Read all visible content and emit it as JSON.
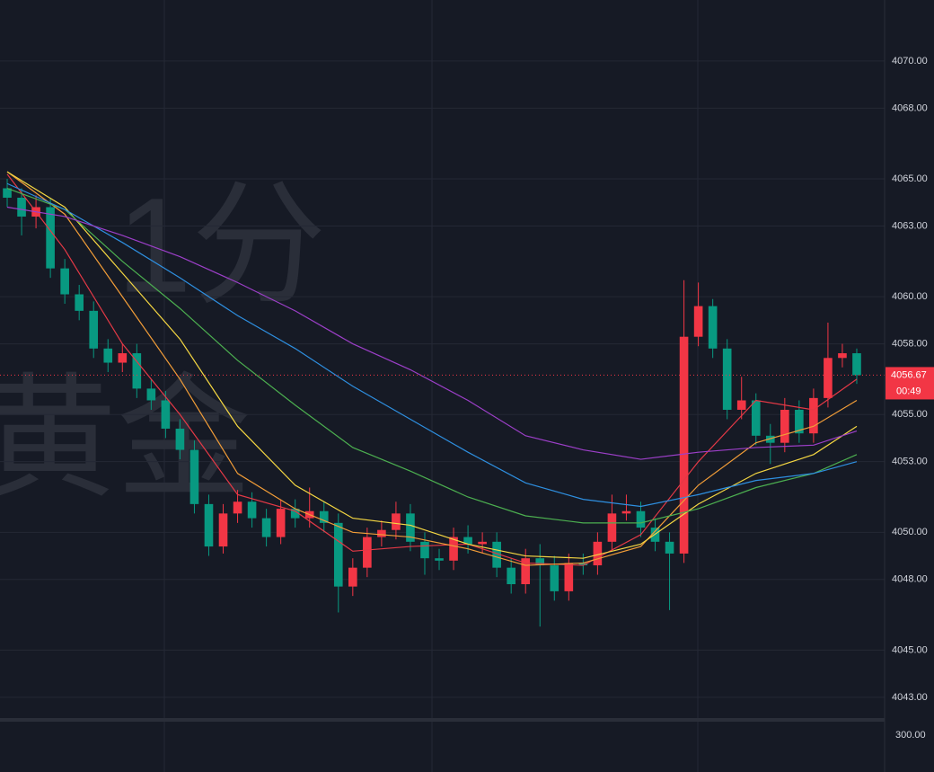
{
  "chart_data": {
    "type": "candlestick",
    "watermark": [
      "1分",
      "黄金"
    ],
    "up_color": "#f23645",
    "down_color": "#089981",
    "open": [
      4064.6,
      4064.2,
      4063.4,
      4063.8,
      4061.2,
      4060.1,
      4059.4,
      4057.8,
      4057.2,
      4057.6,
      4056.1,
      4055.6,
      4054.4,
      4053.5,
      4051.2,
      4049.4,
      4050.8,
      4051.3,
      4050.6,
      4049.8,
      4051.0,
      4050.6,
      4050.9,
      4050.4,
      4047.7,
      4048.5,
      4049.8,
      4050.1,
      4050.8,
      4049.6,
      4048.9,
      4048.8,
      4049.8,
      4049.5,
      4049.6,
      4048.5,
      4047.8,
      4048.9,
      4048.6,
      4047.5,
      4048.7,
      4048.6,
      4049.6,
      4050.8,
      4050.9,
      4050.2,
      4049.6,
      4049.1,
      4058.3,
      4059.6,
      4057.8,
      4055.2,
      4055.6,
      4054.1,
      4053.8,
      4055.2,
      4054.2,
      4055.7,
      4057.4,
      4057.6
    ],
    "high": [
      4065.0,
      4064.6,
      4064.3,
      4064.2,
      4061.6,
      4060.5,
      4059.8,
      4058.2,
      4058.0,
      4058.0,
      4056.5,
      4056.0,
      4054.8,
      4053.9,
      4051.6,
      4051.2,
      4051.8,
      4051.7,
      4051.0,
      4051.4,
      4051.4,
      4051.9,
      4051.3,
      4050.8,
      4048.9,
      4050.2,
      4050.5,
      4051.3,
      4051.2,
      4050.0,
      4049.3,
      4050.2,
      4050.3,
      4050.0,
      4050.0,
      4048.9,
      4049.3,
      4049.5,
      4049.0,
      4049.1,
      4049.1,
      4050.0,
      4051.6,
      4051.6,
      4051.3,
      4050.6,
      4050.0,
      4060.7,
      4060.6,
      4059.9,
      4058.2,
      4056.6,
      4055.9,
      4054.6,
      4055.7,
      4055.6,
      4056.1,
      4058.9,
      4058.0,
      4057.8
    ],
    "low": [
      4063.8,
      4062.6,
      4062.9,
      4060.8,
      4059.7,
      4059.0,
      4057.4,
      4056.8,
      4056.8,
      4055.7,
      4055.2,
      4054.0,
      4053.1,
      4050.8,
      4049.0,
      4049.1,
      4050.4,
      4050.2,
      4049.4,
      4049.5,
      4050.2,
      4050.2,
      4050.0,
      4046.6,
      4047.3,
      4048.1,
      4049.4,
      4049.7,
      4049.2,
      4048.2,
      4048.4,
      4048.4,
      4049.1,
      4049.1,
      4048.1,
      4047.4,
      4047.4,
      4046.0,
      4047.1,
      4047.1,
      4048.2,
      4048.2,
      4049.2,
      4050.5,
      4049.8,
      4049.2,
      4046.7,
      4048.7,
      4057.9,
      4057.4,
      4054.8,
      4054.8,
      4053.7,
      4052.9,
      4053.4,
      4053.8,
      4053.8,
      4055.3,
      4057.0,
      4056.3
    ],
    "close": [
      4064.2,
      4063.4,
      4063.8,
      4061.2,
      4060.1,
      4059.4,
      4057.8,
      4057.2,
      4057.6,
      4056.1,
      4055.6,
      4054.4,
      4053.5,
      4051.2,
      4049.4,
      4050.8,
      4051.3,
      4050.6,
      4049.8,
      4051.0,
      4050.6,
      4050.9,
      4050.4,
      4047.7,
      4048.5,
      4049.8,
      4050.1,
      4050.8,
      4049.6,
      4048.9,
      4048.8,
      4049.8,
      4049.5,
      4049.6,
      4048.5,
      4047.8,
      4048.9,
      4048.6,
      4047.5,
      4048.7,
      4048.6,
      4049.6,
      4050.8,
      4050.9,
      4050.2,
      4049.6,
      4049.1,
      4058.3,
      4059.6,
      4057.8,
      4055.2,
      4055.6,
      4054.1,
      4053.8,
      4055.2,
      4054.2,
      4055.7,
      4057.4,
      4057.6,
      4056.67
    ],
    "ma_x": [
      0,
      4,
      8,
      12,
      16,
      20,
      24,
      28,
      32,
      36,
      40,
      44,
      48,
      52,
      56,
      59
    ],
    "ma": [
      {
        "color": "#e53946",
        "values": [
          4065.2,
          4062.0,
          4058.0,
          4055.0,
          4051.6,
          4050.9,
          4049.2,
          4049.4,
          4049.5,
          4048.7,
          4048.6,
          4049.9,
          4053.0,
          4055.6,
          4055.2,
          4056.5
        ]
      },
      {
        "color": "#f29d38",
        "values": [
          4065.3,
          4063.5,
          4060.0,
          4056.5,
          4052.5,
          4051.0,
          4050.0,
          4049.8,
          4049.3,
          4048.6,
          4048.7,
          4049.4,
          4052.0,
          4053.8,
          4054.5,
          4055.6
        ]
      },
      {
        "color": "#f5d742",
        "values": [
          4065.3,
          4063.8,
          4061.0,
          4058.2,
          4054.5,
          4052.0,
          4050.6,
          4050.3,
          4049.5,
          4049.0,
          4048.9,
          4049.5,
          4051.2,
          4052.5,
          4053.3,
          4054.5
        ]
      },
      {
        "color": "#4caf50",
        "values": [
          4064.6,
          4063.7,
          4061.5,
          4059.5,
          4057.3,
          4055.4,
          4053.6,
          4052.6,
          4051.5,
          4050.7,
          4050.4,
          4050.4,
          4051.0,
          4051.9,
          4052.5,
          4053.3
        ]
      },
      {
        "color": "#2e8fe0",
        "values": [
          4064.8,
          4063.7,
          4062.3,
          4060.8,
          4059.2,
          4057.8,
          4056.2,
          4054.8,
          4053.4,
          4052.1,
          4051.4,
          4051.1,
          4051.6,
          4052.2,
          4052.5,
          4053.0
        ]
      },
      {
        "color": "#9c3fc8",
        "values": [
          4063.8,
          4063.4,
          4062.6,
          4061.7,
          4060.6,
          4059.4,
          4058.0,
          4056.9,
          4055.6,
          4054.1,
          4053.5,
          4053.1,
          4053.4,
          4053.6,
          4053.7,
          4054.3
        ]
      }
    ],
    "ylim": [
      4042.08,
      4072.59
    ],
    "yticks": [
      {
        "value": 4070,
        "label": "4070.00"
      },
      {
        "value": 4068,
        "label": "4068.00"
      },
      {
        "value": 4065,
        "label": "4065.00"
      },
      {
        "value": 4063,
        "label": "4063.00"
      },
      {
        "value": 4060,
        "label": "4060.00"
      },
      {
        "value": 4058,
        "label": "4058.00"
      },
      {
        "value": 4055,
        "label": "4055.00"
      },
      {
        "value": 4053,
        "label": "4053.00"
      },
      {
        "value": 4050,
        "label": "4050.00"
      },
      {
        "value": 4048,
        "label": "4048.00"
      },
      {
        "value": 4045,
        "label": "4045.00"
      },
      {
        "value": 4043,
        "label": "4043.00"
      }
    ],
    "last_price": 4056.67,
    "countdown": "00:49",
    "volume_tick": "300.00",
    "grid": true
  }
}
